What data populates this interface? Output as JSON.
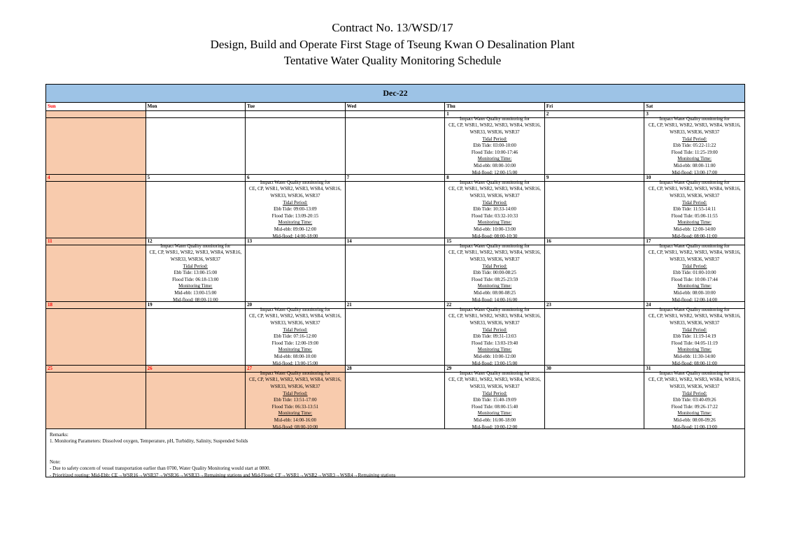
{
  "title": {
    "line1": "Contract No. 13/WSD/17",
    "line2": "Design, Build and Operate First Stage of Tseung Kwan O Desalination Plant",
    "line3": "Tentative Water Quality Monitoring Schedule"
  },
  "calendar": {
    "month_label": "Dec-22",
    "day_names": [
      "Sun",
      "Mon",
      "Tue",
      "Wed",
      "Thu",
      "Fri",
      "Sat"
    ],
    "colors": {
      "month_header_bg": "#9DC3E6",
      "highlight_bg": "#F8CBAD",
      "holiday_date_color": "#FF0000"
    },
    "monitoring_common": {
      "title_line": "Impact Water Quality monitoring for",
      "stations_line1": "CE, CP, WSR1, WSR2, WSR3, WSR4, WSR16,",
      "stations_line2": "WSR33, WSR36, WSR37",
      "tidal_period_label": "Tidal Period:",
      "ebb_label": "Ebb Tide:",
      "flood_label": "Flood Tide:",
      "monitoring_time_label": "Monitoring Time:",
      "mid_ebb_label": "Mid-ebb:",
      "mid_flood_label": "Mid-flood:"
    },
    "weeks": [
      {
        "days": [
          {
            "date": "",
            "highlight": true,
            "red": false,
            "monitoring": null
          },
          {
            "date": "",
            "highlight": false,
            "red": false,
            "monitoring": null
          },
          {
            "date": "",
            "highlight": false,
            "red": false,
            "monitoring": null
          },
          {
            "date": "",
            "highlight": false,
            "red": false,
            "monitoring": null
          },
          {
            "date": "1",
            "highlight": false,
            "red": false,
            "monitoring": {
              "ebb": "03:00-10:00",
              "flood": "10:00-17:46",
              "mid_ebb": "08:00-10:00",
              "mid_flood": "12:00-15:00"
            }
          },
          {
            "date": "2",
            "highlight": false,
            "red": false,
            "monitoring": null
          },
          {
            "date": "3",
            "highlight": false,
            "red": false,
            "monitoring": {
              "ebb": "05:22-11:22",
              "flood": "11:25-19:00",
              "mid_ebb": "08:00-11:00",
              "mid_flood": "13:00-17:00"
            }
          }
        ]
      },
      {
        "days": [
          {
            "date": "4",
            "highlight": true,
            "red": true,
            "monitoring": null
          },
          {
            "date": "5",
            "highlight": false,
            "red": false,
            "monitoring": null
          },
          {
            "date": "6",
            "highlight": false,
            "red": false,
            "monitoring": {
              "ebb": "09:00-13:09",
              "flood": "13:09-20:15",
              "mid_ebb": "09:00-12:00",
              "mid_flood": "14:00-18:00"
            }
          },
          {
            "date": "7",
            "highlight": false,
            "red": false,
            "monitoring": null
          },
          {
            "date": "8",
            "highlight": false,
            "red": false,
            "monitoring": {
              "ebb": "10:33-14:00",
              "flood": "03:32-10:33",
              "mid_ebb": "10:00-13:00",
              "mid_flood": "08:00-10:30"
            }
          },
          {
            "date": "9",
            "highlight": false,
            "red": false,
            "monitoring": null
          },
          {
            "date": "10",
            "highlight": false,
            "red": false,
            "monitoring": {
              "ebb": "11:55-14:11",
              "flood": "05:00-11:55",
              "mid_ebb": "12:00-14:00",
              "mid_flood": "08:00-11:00"
            }
          }
        ]
      },
      {
        "days": [
          {
            "date": "11",
            "highlight": true,
            "red": true,
            "monitoring": null
          },
          {
            "date": "12",
            "highlight": false,
            "red": false,
            "monitoring": {
              "ebb": "13:00-15:00",
              "flood": "06:18-13:00",
              "mid_ebb": "13:00-15:00",
              "mid_flood": "08:00-11:00"
            }
          },
          {
            "date": "13",
            "highlight": false,
            "red": false,
            "monitoring": null
          },
          {
            "date": "14",
            "highlight": false,
            "red": false,
            "monitoring": null
          },
          {
            "date": "15",
            "highlight": false,
            "red": false,
            "monitoring": {
              "ebb": "00:00-08:25",
              "flood": "08:25-23:59",
              "mid_ebb": "08:00-08:25",
              "mid_flood": "14:00-16:00"
            }
          },
          {
            "date": "16",
            "highlight": false,
            "red": false,
            "monitoring": null
          },
          {
            "date": "17",
            "highlight": false,
            "red": false,
            "monitoring": {
              "ebb": "01:00-10:00",
              "flood": "10:00-17:44",
              "mid_ebb": "08:00-10:00",
              "mid_flood": "12:00-14:00"
            }
          }
        ]
      },
      {
        "days": [
          {
            "date": "18",
            "highlight": true,
            "red": true,
            "monitoring": null
          },
          {
            "date": "19",
            "highlight": false,
            "red": false,
            "monitoring": null
          },
          {
            "date": "20",
            "highlight": false,
            "red": false,
            "monitoring": {
              "ebb": "07:16-12:00",
              "flood": "12:00-19:00",
              "mid_ebb": "08:00-10:00",
              "mid_flood": "13:00-15:00"
            }
          },
          {
            "date": "21",
            "highlight": false,
            "red": false,
            "monitoring": null
          },
          {
            "date": "22",
            "highlight": false,
            "red": false,
            "monitoring": {
              "ebb": "09:31-13:03",
              "flood": "13:03-19:40",
              "mid_ebb": "10:00-12:00",
              "mid_flood": "13:00-15:00"
            }
          },
          {
            "date": "23",
            "highlight": false,
            "red": false,
            "monitoring": null
          },
          {
            "date": "24",
            "highlight": false,
            "red": false,
            "monitoring": {
              "ebb": "11:19-14:19",
              "flood": "04:05-11:19",
              "mid_ebb": "11:30-14:00",
              "mid_flood": "08:00-11:00"
            }
          }
        ]
      },
      {
        "days": [
          {
            "date": "25",
            "highlight": true,
            "red": true,
            "monitoring": null
          },
          {
            "date": "26",
            "highlight": true,
            "red": true,
            "monitoring": null
          },
          {
            "date": "27",
            "highlight": true,
            "red": true,
            "monitoring": {
              "ebb": "13:51-17:00",
              "flood": "06:33-13:51",
              "mid_ebb": "14:00-16:00",
              "mid_flood": "08:00-10:00"
            }
          },
          {
            "date": "28",
            "highlight": false,
            "red": false,
            "monitoring": null
          },
          {
            "date": "29",
            "highlight": false,
            "red": false,
            "monitoring": {
              "ebb": "15:40-19:09",
              "flood": "08:00-15:40",
              "mid_ebb": "16:00-18:00",
              "mid_flood": "10:00-12:00"
            }
          },
          {
            "date": "30",
            "highlight": false,
            "red": false,
            "monitoring": null
          },
          {
            "date": "31",
            "highlight": false,
            "red": false,
            "monitoring": {
              "ebb": "03:40-09:26",
              "flood": "09:26-17:22",
              "mid_ebb": "08:00-09:26",
              "mid_flood": "11:00-13:00"
            }
          }
        ]
      }
    ]
  },
  "remarks": {
    "heading": "Remarks:",
    "line1": "1. Monitoring Parameters: Dissolved oxygen, Temperature, pH, Turbidity, Salinity, Suspended Solids",
    "note_heading": "Note:",
    "note1": "- Due to safety concern of vessel transportation earlier than 0700, Water Quality Monitoring would start at 0800.",
    "note2": "- Prioritized routing: Mid-Ebb: CE→WSR16→WSR37→WSR36→WSR33→Remaining stations and Mid-Flood: CF→WSR1→WSR2→WSR3→WSR4→Remaining stations"
  }
}
